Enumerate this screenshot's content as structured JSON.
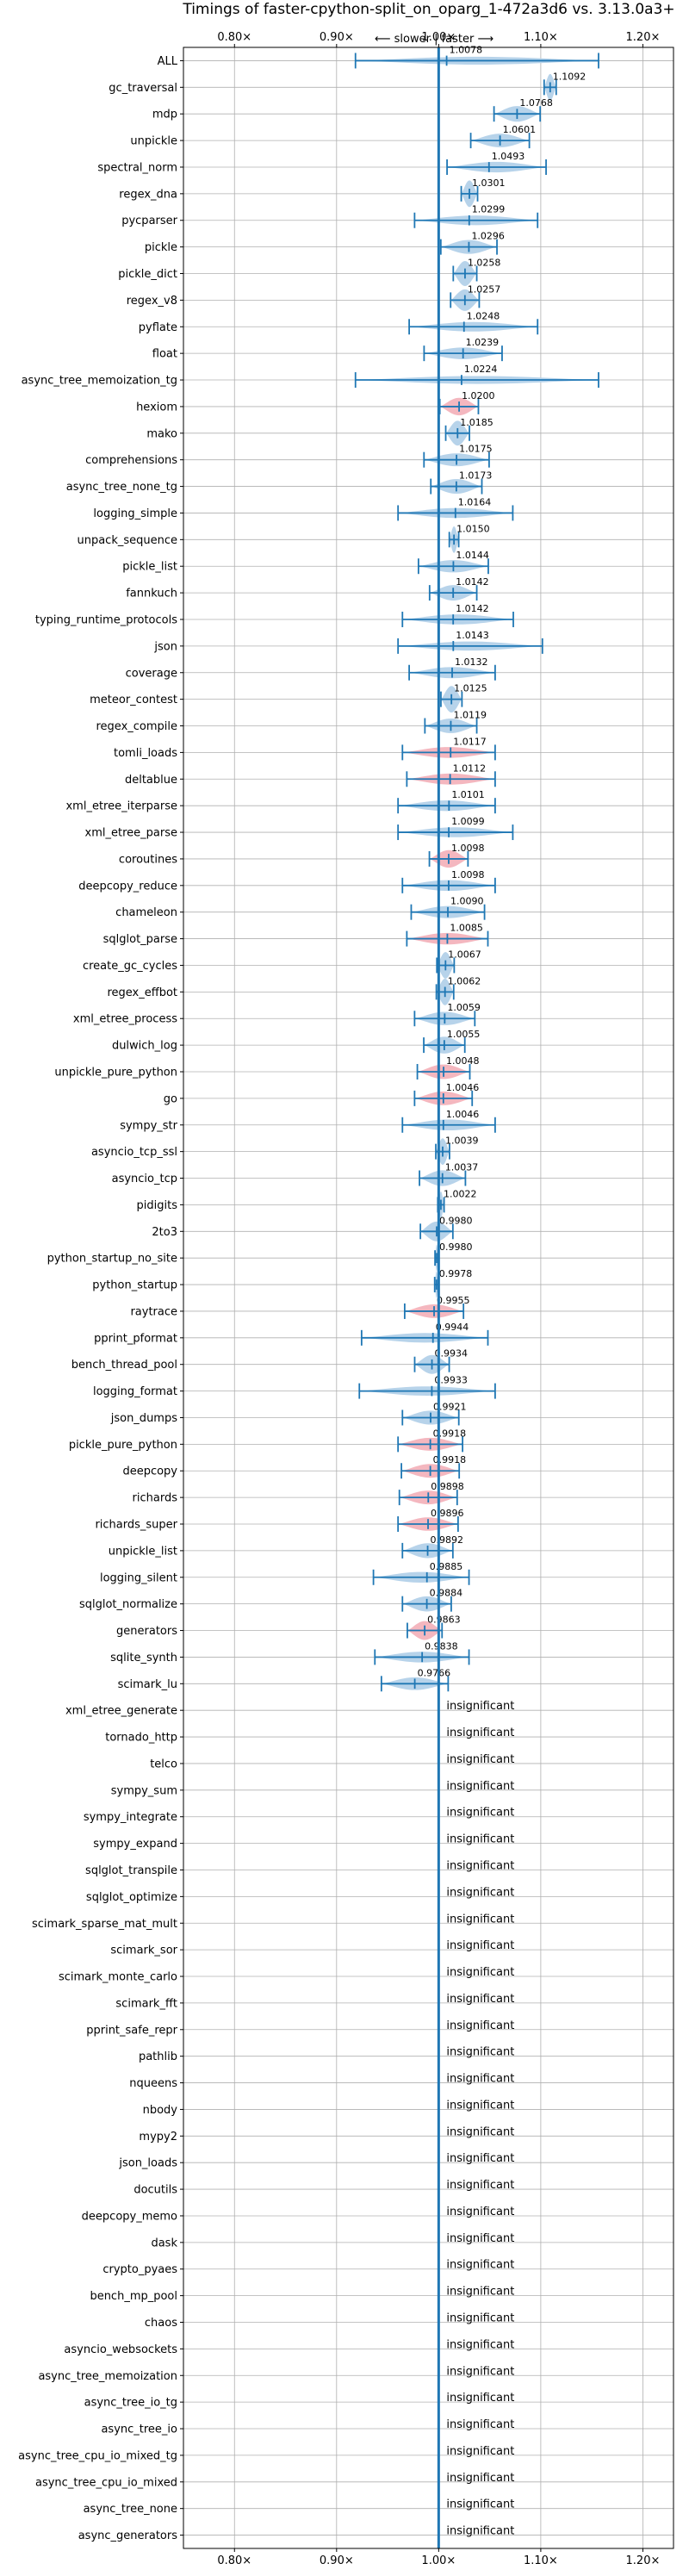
{
  "chart_data": {
    "type": "violin",
    "title": "Timings of faster-cpython-split_on_oparg_1-472a3d6 vs. 3.13.0a3+",
    "direction_label": "⟵ slower | faster ⟶",
    "x_ticks": [
      "0.80×",
      "0.90×",
      "1.00×",
      "1.10×",
      "1.20×"
    ],
    "xlim": [
      0.75,
      1.23
    ],
    "grid": true,
    "insignificant_label": "insignificant",
    "colors": {
      "normal": "#b7d3ea",
      "highlight": "#f4b7bf",
      "line": "#1f77b4"
    },
    "benchmarks": [
      {
        "name": "ALL",
        "value": 1.0078,
        "label": "1.0078",
        "low": 0.9185,
        "high": 1.1566
      },
      {
        "name": "gc_traversal",
        "value": 1.1092,
        "label": "1.1092",
        "low": 1.1033,
        "high": 1.1151
      },
      {
        "name": "mdp",
        "value": 1.0768,
        "label": "1.0768",
        "low": 1.0542,
        "high": 1.0994
      },
      {
        "name": "unpickle",
        "value": 1.0601,
        "label": "1.0601",
        "low": 1.0314,
        "high": 1.0888
      },
      {
        "name": "spectral_norm",
        "value": 1.0493,
        "label": "1.0493",
        "low": 1.0082,
        "high": 1.1052
      },
      {
        "name": "regex_dna",
        "value": 1.0301,
        "label": "1.0301",
        "low": 1.0221,
        "high": 1.0381
      },
      {
        "name": "pycparser",
        "value": 1.0299,
        "label": "1.0299",
        "low": 0.9764,
        "high": 1.0969
      },
      {
        "name": "pickle",
        "value": 1.0296,
        "label": "1.0296",
        "low": 1.0021,
        "high": 1.0571
      },
      {
        "name": "pickle_dict",
        "value": 1.0258,
        "label": "1.0258",
        "low": 1.0143,
        "high": 1.0373
      },
      {
        "name": "regex_v8",
        "value": 1.0257,
        "label": "1.0257",
        "low": 1.0117,
        "high": 1.0397
      },
      {
        "name": "pyflate",
        "value": 1.0248,
        "label": "1.0248",
        "low": 0.9711,
        "high": 1.0969
      },
      {
        "name": "float",
        "value": 1.0239,
        "label": "1.0239",
        "low": 0.9857,
        "high": 1.0621
      },
      {
        "name": "async_tree_memoization_tg",
        "value": 1.0224,
        "label": "1.0224",
        "low": 0.9185,
        "high": 1.1566
      },
      {
        "name": "hexiom",
        "value": 1.02,
        "label": "1.0200",
        "low": 1.0011,
        "high": 1.0389,
        "highlight": true
      },
      {
        "name": "mako",
        "value": 1.0185,
        "label": "1.0185",
        "low": 1.0069,
        "high": 1.0301
      },
      {
        "name": "comprehensions",
        "value": 1.0175,
        "label": "1.0175",
        "low": 0.9856,
        "high": 1.0494
      },
      {
        "name": "async_tree_none_tg",
        "value": 1.0173,
        "label": "1.0173",
        "low": 0.9923,
        "high": 1.0423
      },
      {
        "name": "logging_simple",
        "value": 1.0164,
        "label": "1.0164",
        "low": 0.9602,
        "high": 1.0726
      },
      {
        "name": "unpack_sequence",
        "value": 1.015,
        "label": "1.0150",
        "low": 1.0104,
        "high": 1.0196
      },
      {
        "name": "pickle_list",
        "value": 1.0144,
        "label": "1.0144",
        "low": 0.9802,
        "high": 1.0486
      },
      {
        "name": "fannkuch",
        "value": 1.0142,
        "label": "1.0142",
        "low": 0.9911,
        "high": 1.0373
      },
      {
        "name": "typing_runtime_protocols",
        "value": 1.0142,
        "label": "1.0142",
        "low": 0.9645,
        "high": 1.0731
      },
      {
        "name": "json",
        "value": 1.0143,
        "label": "1.0143",
        "low": 0.9602,
        "high": 1.1016
      },
      {
        "name": "coverage",
        "value": 1.0132,
        "label": "1.0132",
        "low": 0.9711,
        "high": 1.0553
      },
      {
        "name": "meteor_contest",
        "value": 1.0125,
        "label": "1.0125",
        "low": 1.0022,
        "high": 1.0228
      },
      {
        "name": "regex_compile",
        "value": 1.0119,
        "label": "1.0119",
        "low": 0.9865,
        "high": 1.0373
      },
      {
        "name": "tomli_loads",
        "value": 1.0117,
        "label": "1.0117",
        "low": 0.9645,
        "high": 1.0553,
        "highlight": true
      },
      {
        "name": "deltablue",
        "value": 1.0112,
        "label": "1.0112",
        "low": 0.9688,
        "high": 1.0553,
        "highlight": true
      },
      {
        "name": "xml_etree_iterparse",
        "value": 1.0101,
        "label": "1.0101",
        "low": 0.9602,
        "high": 1.0553
      },
      {
        "name": "xml_etree_parse",
        "value": 1.0099,
        "label": "1.0099",
        "low": 0.9602,
        "high": 1.0726
      },
      {
        "name": "coroutines",
        "value": 1.0098,
        "label": "1.0098",
        "low": 0.9909,
        "high": 1.0287,
        "highlight": true
      },
      {
        "name": "deepcopy_reduce",
        "value": 1.0098,
        "label": "1.0098",
        "low": 0.9645,
        "high": 1.0553
      },
      {
        "name": "chameleon",
        "value": 1.009,
        "label": "1.0090",
        "low": 0.9731,
        "high": 1.0449
      },
      {
        "name": "sqlglot_parse",
        "value": 1.0085,
        "label": "1.0085",
        "low": 0.9688,
        "high": 1.0482,
        "highlight": true
      },
      {
        "name": "create_gc_cycles",
        "value": 1.0067,
        "label": "1.0067",
        "low": 0.9982,
        "high": 1.0152
      },
      {
        "name": "regex_effbot",
        "value": 1.0062,
        "label": "1.0062",
        "low": 0.9977,
        "high": 1.0147
      },
      {
        "name": "xml_etree_process",
        "value": 1.0059,
        "label": "1.0059",
        "low": 0.9764,
        "high": 1.0354
      },
      {
        "name": "dulwich_log",
        "value": 1.0055,
        "label": "1.0055",
        "low": 0.9854,
        "high": 1.0256
      },
      {
        "name": "unpickle_pure_python",
        "value": 1.0048,
        "label": "1.0048",
        "low": 0.9791,
        "high": 1.0305,
        "highlight": true
      },
      {
        "name": "go",
        "value": 1.0046,
        "label": "1.0046",
        "low": 0.9764,
        "high": 1.0328,
        "highlight": true
      },
      {
        "name": "sympy_str",
        "value": 1.0046,
        "label": "1.0046",
        "low": 0.9645,
        "high": 1.0553
      },
      {
        "name": "asyncio_tcp_ssl",
        "value": 1.0039,
        "label": "1.0039",
        "low": 0.9972,
        "high": 1.0106
      },
      {
        "name": "asyncio_tcp",
        "value": 1.0037,
        "label": "1.0037",
        "low": 0.9812,
        "high": 1.0262
      },
      {
        "name": "pidigits",
        "value": 1.0022,
        "label": "1.0022",
        "low": 0.9991,
        "high": 1.0053
      },
      {
        "name": "2to3",
        "value": 0.998,
        "label": "0.9980",
        "low": 0.9821,
        "high": 1.0139
      },
      {
        "name": "python_startup_no_site",
        "value": 0.998,
        "label": "0.9980",
        "low": 0.9964,
        "high": 0.9996
      },
      {
        "name": "python_startup",
        "value": 0.9978,
        "label": "0.9978",
        "low": 0.9961,
        "high": 0.9995
      },
      {
        "name": "raytrace",
        "value": 0.9955,
        "label": "0.9955",
        "low": 0.9667,
        "high": 1.0243,
        "highlight": true
      },
      {
        "name": "pprint_pformat",
        "value": 0.9944,
        "label": "0.9944",
        "low": 0.9245,
        "high": 1.0482
      },
      {
        "name": "bench_thread_pool",
        "value": 0.9934,
        "label": "0.9934",
        "low": 0.9765,
        "high": 1.0103
      },
      {
        "name": "logging_format",
        "value": 0.9933,
        "label": "0.9933",
        "low": 0.9223,
        "high": 1.0553
      },
      {
        "name": "json_dumps",
        "value": 0.9921,
        "label": "0.9921",
        "low": 0.9645,
        "high": 1.0197
      },
      {
        "name": "pickle_pure_python",
        "value": 0.9918,
        "label": "0.9918",
        "low": 0.9602,
        "high": 1.0234,
        "highlight": true
      },
      {
        "name": "deepcopy",
        "value": 0.9918,
        "label": "0.9918",
        "low": 0.9635,
        "high": 1.0201,
        "highlight": true
      },
      {
        "name": "richards",
        "value": 0.9898,
        "label": "0.9898",
        "low": 0.9615,
        "high": 1.0181,
        "highlight": true
      },
      {
        "name": "richards_super",
        "value": 0.9896,
        "label": "0.9896",
        "low": 0.9602,
        "high": 1.019,
        "highlight": true
      },
      {
        "name": "unpickle_list",
        "value": 0.9892,
        "label": "0.9892",
        "low": 0.9645,
        "high": 1.0139
      },
      {
        "name": "logging_silent",
        "value": 0.9885,
        "label": "0.9885",
        "low": 0.9361,
        "high": 1.0297
      },
      {
        "name": "sqlglot_normalize",
        "value": 0.9884,
        "label": "0.9884",
        "low": 0.9645,
        "high": 1.0123
      },
      {
        "name": "generators",
        "value": 0.9863,
        "label": "0.9863",
        "low": 0.9693,
        "high": 1.0033,
        "highlight": true
      },
      {
        "name": "sqlite_synth",
        "value": 0.9838,
        "label": "0.9838",
        "low": 0.9375,
        "high": 1.0297
      },
      {
        "name": "scimark_lu",
        "value": 0.9766,
        "label": "0.9766",
        "low": 0.9439,
        "high": 1.0093
      },
      {
        "name": "xml_etree_generate",
        "significant": false
      },
      {
        "name": "tornado_http",
        "significant": false
      },
      {
        "name": "telco",
        "significant": false
      },
      {
        "name": "sympy_sum",
        "significant": false
      },
      {
        "name": "sympy_integrate",
        "significant": false
      },
      {
        "name": "sympy_expand",
        "significant": false
      },
      {
        "name": "sqlglot_transpile",
        "significant": false
      },
      {
        "name": "sqlglot_optimize",
        "significant": false
      },
      {
        "name": "scimark_sparse_mat_mult",
        "significant": false
      },
      {
        "name": "scimark_sor",
        "significant": false
      },
      {
        "name": "scimark_monte_carlo",
        "significant": false
      },
      {
        "name": "scimark_fft",
        "significant": false
      },
      {
        "name": "pprint_safe_repr",
        "significant": false
      },
      {
        "name": "pathlib",
        "significant": false
      },
      {
        "name": "nqueens",
        "significant": false
      },
      {
        "name": "nbody",
        "significant": false
      },
      {
        "name": "mypy2",
        "significant": false
      },
      {
        "name": "json_loads",
        "significant": false
      },
      {
        "name": "docutils",
        "significant": false
      },
      {
        "name": "deepcopy_memo",
        "significant": false
      },
      {
        "name": "dask",
        "significant": false
      },
      {
        "name": "crypto_pyaes",
        "significant": false
      },
      {
        "name": "bench_mp_pool",
        "significant": false
      },
      {
        "name": "chaos",
        "significant": false
      },
      {
        "name": "asyncio_websockets",
        "significant": false
      },
      {
        "name": "async_tree_memoization",
        "significant": false
      },
      {
        "name": "async_tree_io_tg",
        "significant": false
      },
      {
        "name": "async_tree_io",
        "significant": false
      },
      {
        "name": "async_tree_cpu_io_mixed_tg",
        "significant": false
      },
      {
        "name": "async_tree_cpu_io_mixed",
        "significant": false
      },
      {
        "name": "async_tree_none",
        "significant": false
      },
      {
        "name": "async_generators",
        "significant": false
      }
    ]
  }
}
